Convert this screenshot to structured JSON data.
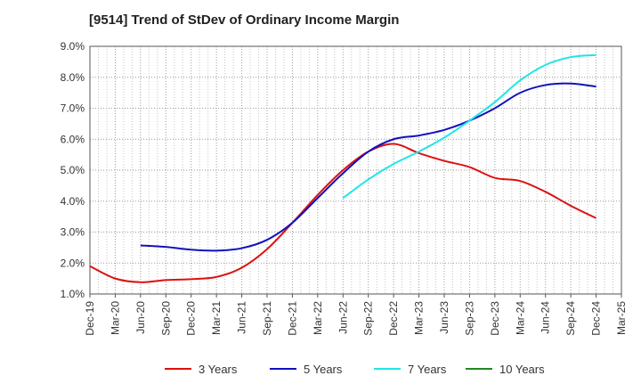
{
  "chart_data": {
    "type": "line",
    "title": "[9514]  Trend of StDev of Ordinary Income Margin",
    "xlabel": "",
    "ylabel": "",
    "x": [
      "Dec-19",
      "Mar-20",
      "Jun-20",
      "Sep-20",
      "Dec-20",
      "Mar-21",
      "Jun-21",
      "Sep-21",
      "Dec-21",
      "Mar-22",
      "Jun-22",
      "Sep-22",
      "Dec-22",
      "Mar-23",
      "Jun-23",
      "Sep-23",
      "Dec-23",
      "Mar-24",
      "Jun-24",
      "Sep-24",
      "Dec-24",
      "Mar-25"
    ],
    "ylim": [
      1.0,
      9.0
    ],
    "yticks": [
      "1.0%",
      "2.0%",
      "3.0%",
      "4.0%",
      "5.0%",
      "6.0%",
      "7.0%",
      "8.0%",
      "9.0%"
    ],
    "grid": true,
    "legend_position": "bottom",
    "series": [
      {
        "name": "3 Years",
        "color": "#dd1111",
        "values": [
          1.9,
          1.5,
          1.38,
          1.45,
          1.48,
          1.55,
          1.85,
          2.45,
          3.3,
          4.2,
          5.0,
          5.6,
          5.85,
          5.55,
          5.3,
          5.1,
          4.75,
          4.65,
          4.3,
          3.85,
          3.45,
          null
        ]
      },
      {
        "name": "5 Years",
        "color": "#1111bb",
        "values": [
          null,
          null,
          2.57,
          2.52,
          2.43,
          2.4,
          2.48,
          2.75,
          3.3,
          4.1,
          4.9,
          5.6,
          6.0,
          6.12,
          6.3,
          6.6,
          7.0,
          7.5,
          7.75,
          7.8,
          7.7,
          null
        ]
      },
      {
        "name": "7 Years",
        "color": "#22e5e5",
        "values": [
          null,
          null,
          null,
          null,
          null,
          null,
          null,
          null,
          null,
          null,
          4.1,
          4.7,
          5.2,
          5.6,
          6.05,
          6.6,
          7.2,
          7.9,
          8.4,
          8.65,
          8.72,
          null
        ]
      },
      {
        "name": "10 Years",
        "color": "#228822",
        "values": [
          null,
          null,
          null,
          null,
          null,
          null,
          null,
          null,
          null,
          null,
          null,
          null,
          null,
          null,
          null,
          null,
          null,
          null,
          null,
          null,
          null,
          null
        ]
      }
    ]
  }
}
